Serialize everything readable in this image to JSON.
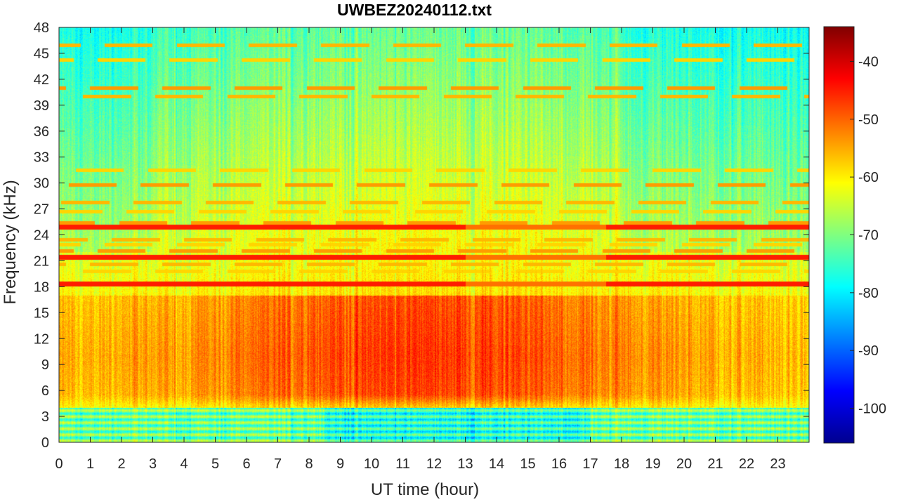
{
  "chart_data": {
    "type": "heatmap",
    "title": "UWBEZ20240112.txt",
    "xlabel": "UT time (hour)",
    "ylabel": "Frequency (kHz)",
    "xlim": [
      0,
      24
    ],
    "ylim": [
      0,
      48
    ],
    "x_ticks": [
      0,
      1,
      2,
      3,
      4,
      5,
      6,
      7,
      8,
      9,
      10,
      11,
      12,
      13,
      14,
      15,
      16,
      17,
      18,
      19,
      20,
      21,
      22,
      23
    ],
    "y_ticks": [
      0,
      3,
      6,
      9,
      12,
      15,
      18,
      21,
      24,
      27,
      30,
      33,
      36,
      39,
      42,
      45,
      48
    ],
    "colorbar": {
      "colormap": "jet",
      "clim": [
        -106,
        -34
      ],
      "ticks": [
        -100,
        -90,
        -80,
        -70,
        -60,
        -50,
        -40
      ]
    },
    "features": {
      "persistent_lines_khz": [
        18.3,
        21.4,
        24.9
      ],
      "intermittent_lines_khz": [
        19.8,
        20.6,
        22.1,
        22.9,
        23.4,
        25.4,
        26.7,
        27.7,
        29.8,
        31.5,
        40.0,
        41.0,
        44.2,
        45.9
      ],
      "broadband_band_khz": [
        4.5,
        17
      ],
      "broadband_peak_hours": [
        10,
        13
      ],
      "low_frequency_band_khz": [
        0,
        4
      ]
    }
  },
  "colors": {
    "axis": "#262626",
    "background": "#ffffff"
  }
}
